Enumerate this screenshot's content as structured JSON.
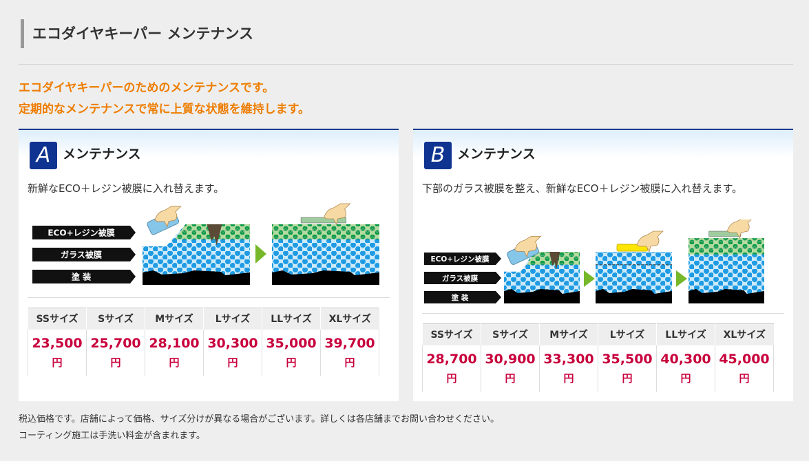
{
  "header": {
    "title": "エコダイヤキーパー メンテナンス"
  },
  "lead": [
    "エコダイヤキーパーのためのメンテナンスです。",
    "定期的なメンテナンスで常に上質な状態を維持します。"
  ],
  "layer_labels": [
    "ECO+レジン被膜",
    "ガラス被膜",
    "塗 装"
  ],
  "panels": [
    {
      "badge": "A",
      "title": "メンテナンス",
      "description": "新鮮なECO＋レジン被膜に入れ替えます。",
      "sizes": [
        "SSサイズ",
        "Sサイズ",
        "Mサイズ",
        "Lサイズ",
        "LLサイズ",
        "XLサイズ"
      ],
      "prices": [
        "23,500",
        "25,700",
        "28,100",
        "30,300",
        "35,000",
        "39,700"
      ],
      "currency": "円"
    },
    {
      "badge": "B",
      "title": "メンテナンス",
      "description": "下部のガラス被膜を整え、新鮮なECO＋レジン被膜に入れ替えます。",
      "sizes": [
        "SSサイズ",
        "Sサイズ",
        "Mサイズ",
        "Lサイズ",
        "LLサイズ",
        "XLサイズ"
      ],
      "prices": [
        "28,700",
        "30,900",
        "33,300",
        "35,500",
        "40,300",
        "45,000"
      ],
      "currency": "円"
    }
  ],
  "notes": [
    "税込価格です。店舗によって価格、サイズ分けが異なる場合がございます。詳しくは各店舗までお問い合わせください。",
    "コーティング施工は手洗い料金が含まれます。"
  ],
  "colors": {
    "accent": "#ee7d00",
    "price": "#c8003c",
    "badge": "#0f3390",
    "arrow": "#76b82a"
  }
}
